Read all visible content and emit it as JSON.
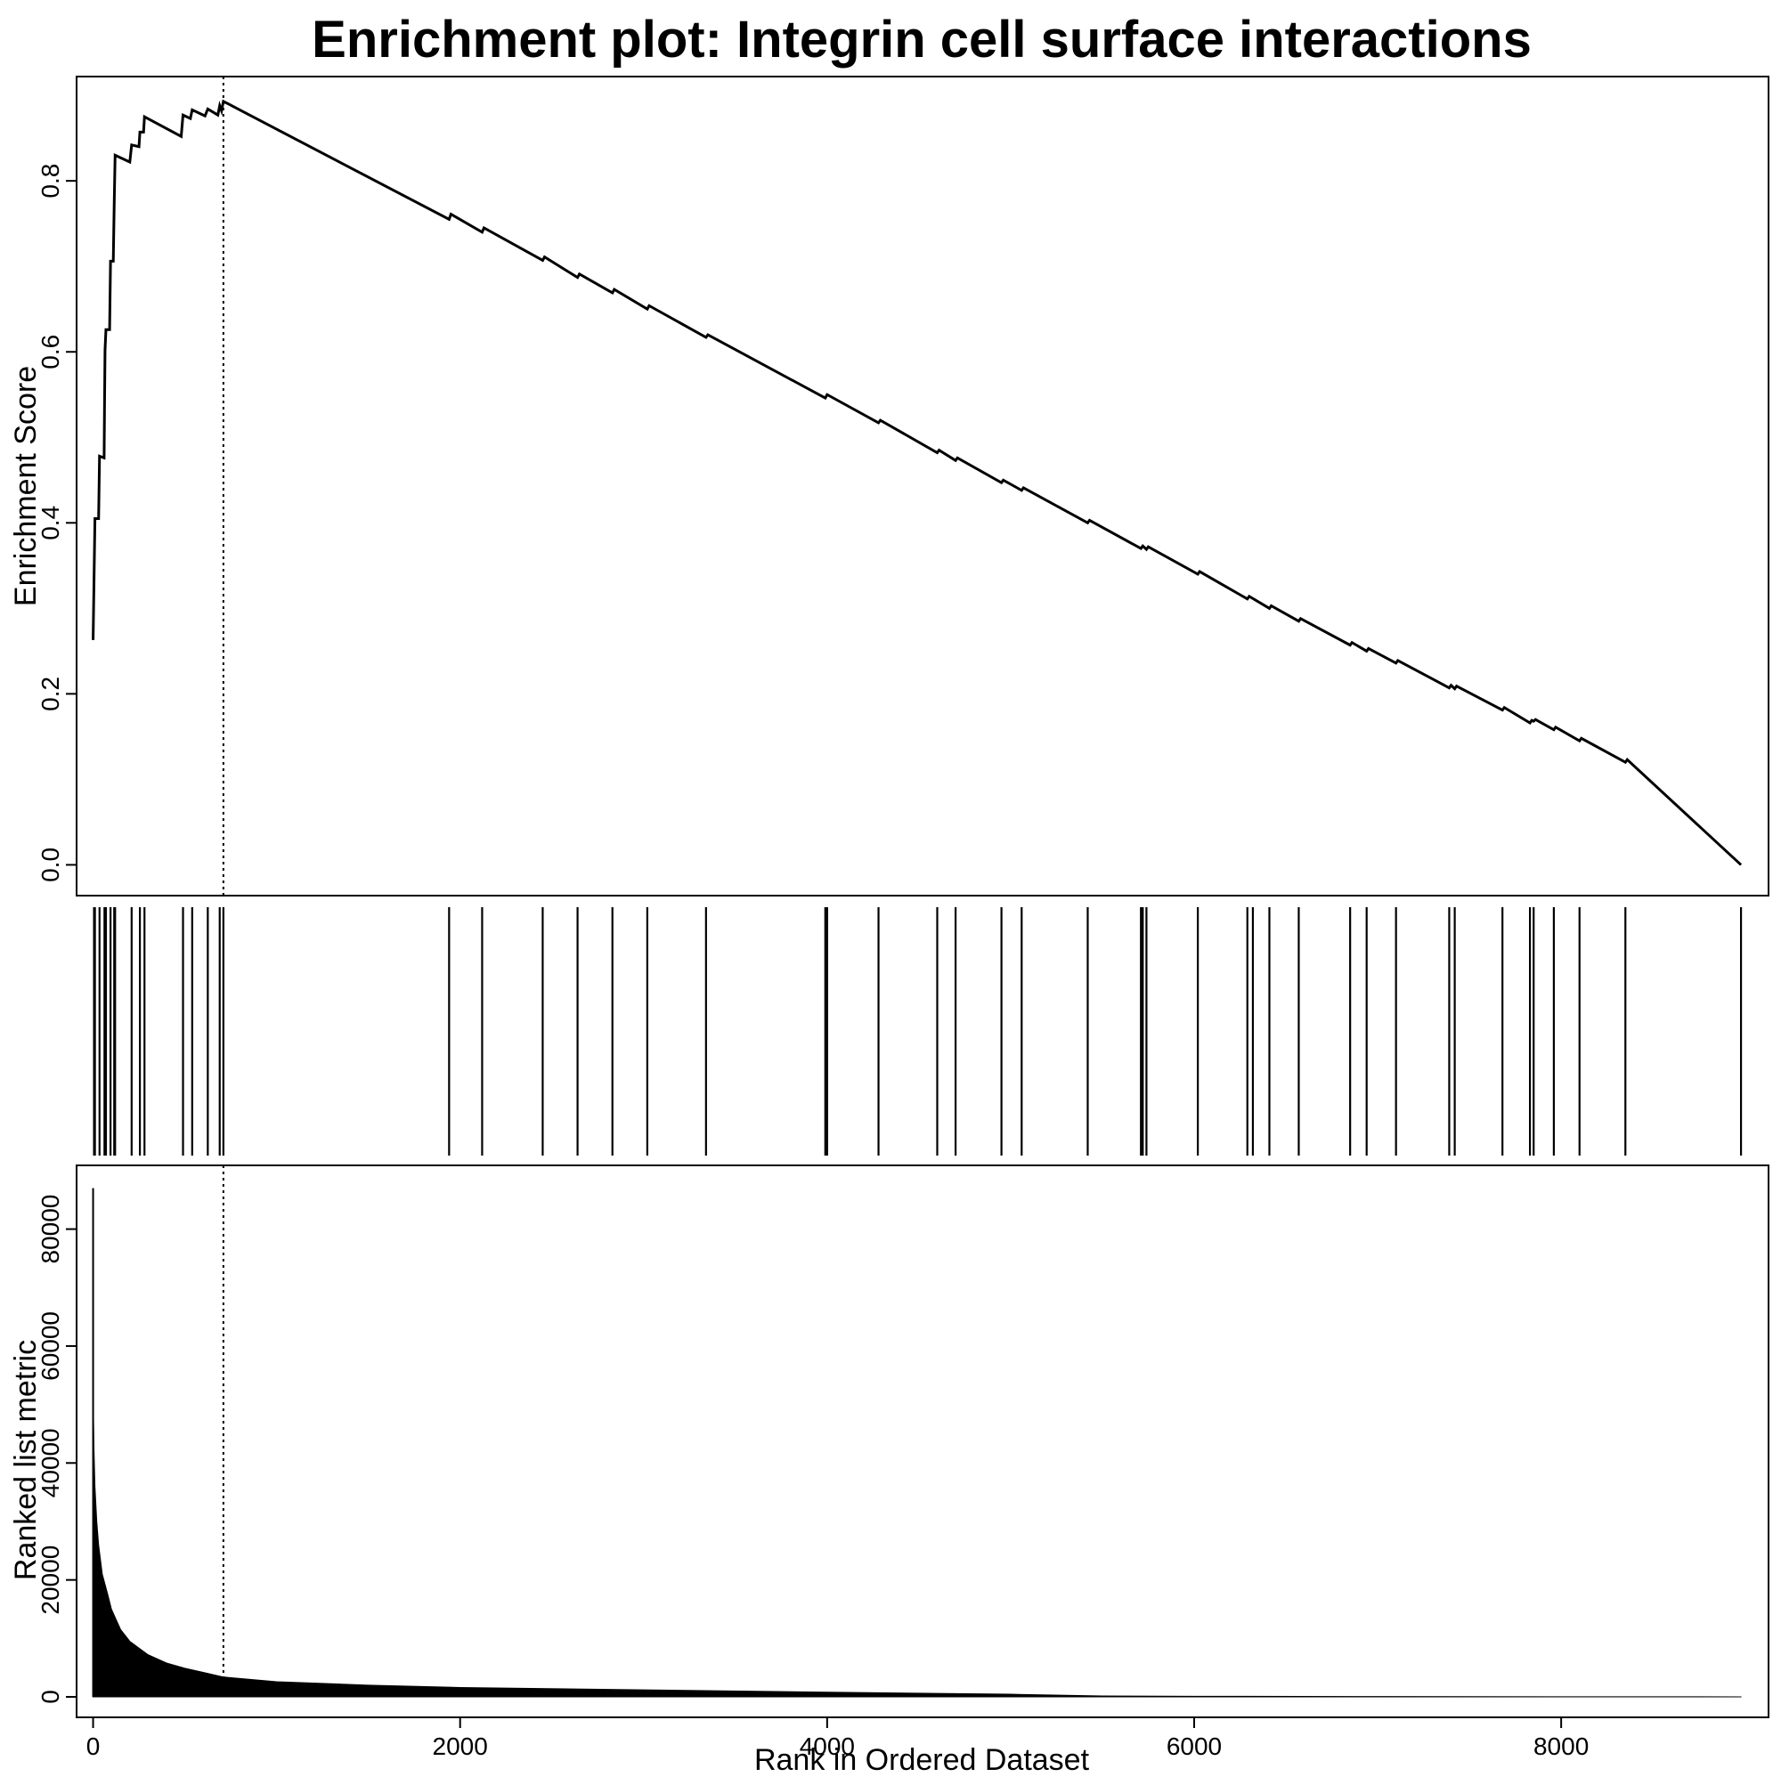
{
  "title": "Enrichment plot: Integrin cell surface interactions",
  "chart_data": [
    {
      "panel": "running-enrichment-score",
      "type": "line",
      "ylabel": "Enrichment Score",
      "xlim": [
        -90,
        9130
      ],
      "ylim": [
        -0.036,
        0.922
      ],
      "yticks": [
        0.0,
        0.2,
        0.4,
        0.6,
        0.8
      ],
      "ytick_labels": [
        "0.0",
        "0.2",
        "0.4",
        "0.6",
        "0.8"
      ],
      "peak_rank": 710,
      "points": [
        [
          0,
          0.263
        ],
        [
          5,
          0.333
        ],
        [
          10,
          0.405
        ],
        [
          30,
          0.405
        ],
        [
          35,
          0.478
        ],
        [
          60,
          0.476
        ],
        [
          62,
          0.53
        ],
        [
          65,
          0.602
        ],
        [
          70,
          0.626
        ],
        [
          90,
          0.626
        ],
        [
          95,
          0.706
        ],
        [
          110,
          0.706
        ],
        [
          115,
          0.773
        ],
        [
          120,
          0.83
        ],
        [
          200,
          0.822
        ],
        [
          210,
          0.842
        ],
        [
          250,
          0.84
        ],
        [
          255,
          0.857
        ],
        [
          275,
          0.857
        ],
        [
          280,
          0.875
        ],
        [
          480,
          0.852
        ],
        [
          490,
          0.877
        ],
        [
          530,
          0.873
        ],
        [
          540,
          0.883
        ],
        [
          610,
          0.876
        ],
        [
          625,
          0.884
        ],
        [
          680,
          0.877
        ],
        [
          690,
          0.888
        ],
        [
          700,
          0.882
        ],
        [
          710,
          0.893
        ],
        [
          1940,
          0.755
        ],
        [
          1950,
          0.761
        ],
        [
          2120,
          0.74
        ],
        [
          2130,
          0.745
        ],
        [
          2450,
          0.707
        ],
        [
          2460,
          0.711
        ],
        [
          2640,
          0.687
        ],
        [
          2650,
          0.691
        ],
        [
          2830,
          0.669
        ],
        [
          2840,
          0.673
        ],
        [
          3020,
          0.65
        ],
        [
          3030,
          0.654
        ],
        [
          3340,
          0.617
        ],
        [
          3350,
          0.62
        ],
        [
          3990,
          0.546
        ],
        [
          4000,
          0.55
        ],
        [
          4280,
          0.517
        ],
        [
          4290,
          0.52
        ],
        [
          4600,
          0.482
        ],
        [
          4610,
          0.485
        ],
        [
          4700,
          0.473
        ],
        [
          4710,
          0.476
        ],
        [
          4950,
          0.447
        ],
        [
          4960,
          0.45
        ],
        [
          5060,
          0.438
        ],
        [
          5070,
          0.441
        ],
        [
          5420,
          0.4
        ],
        [
          5430,
          0.403
        ],
        [
          5710,
          0.37
        ],
        [
          5720,
          0.373
        ],
        [
          5740,
          0.369
        ],
        [
          5750,
          0.372
        ],
        [
          6020,
          0.34
        ],
        [
          6030,
          0.343
        ],
        [
          6290,
          0.311
        ],
        [
          6300,
          0.314
        ],
        [
          6410,
          0.3
        ],
        [
          6420,
          0.303
        ],
        [
          6570,
          0.285
        ],
        [
          6580,
          0.288
        ],
        [
          6850,
          0.257
        ],
        [
          6860,
          0.26
        ],
        [
          6940,
          0.25
        ],
        [
          6950,
          0.253
        ],
        [
          7100,
          0.236
        ],
        [
          7110,
          0.239
        ],
        [
          7390,
          0.207
        ],
        [
          7400,
          0.21
        ],
        [
          7420,
          0.206
        ],
        [
          7430,
          0.209
        ],
        [
          7680,
          0.181
        ],
        [
          7690,
          0.184
        ],
        [
          7830,
          0.166
        ],
        [
          7840,
          0.169
        ],
        [
          7850,
          0.168
        ],
        [
          7860,
          0.17
        ],
        [
          7960,
          0.158
        ],
        [
          7970,
          0.161
        ],
        [
          8100,
          0.145
        ],
        [
          8110,
          0.148
        ],
        [
          8350,
          0.12
        ],
        [
          8360,
          0.123
        ],
        [
          8980,
          0.0
        ]
      ]
    },
    {
      "panel": "gene-set-hits",
      "type": "barcode",
      "positions": [
        5,
        10,
        35,
        62,
        65,
        70,
        95,
        115,
        120,
        210,
        255,
        280,
        490,
        540,
        625,
        690,
        710,
        1940,
        2120,
        2450,
        2640,
        2830,
        3020,
        3340,
        3990,
        4000,
        4280,
        4600,
        4700,
        4950,
        5060,
        5420,
        5710,
        5720,
        5740,
        6020,
        6290,
        6320,
        6410,
        6570,
        6850,
        6940,
        7100,
        7390,
        7420,
        7680,
        7830,
        7850,
        7960,
        8100,
        8350,
        8980
      ]
    },
    {
      "panel": "ranked-list-metric",
      "type": "area",
      "xlabel": "Rank in Ordered Dataset",
      "ylabel": "Ranked list metric",
      "xlim": [
        -90,
        9130
      ],
      "ylim": [
        -3500,
        90900
      ],
      "xticks": [
        0,
        2000,
        4000,
        6000,
        8000
      ],
      "xtick_labels": [
        "0",
        "2000",
        "4000",
        "6000",
        "8000"
      ],
      "yticks": [
        0,
        20000,
        40000,
        60000,
        80000
      ],
      "ytick_labels": [
        "0",
        "20000",
        "40000",
        "60000",
        "80000"
      ],
      "peak_rank": 710,
      "points": [
        [
          0,
          87000
        ],
        [
          2,
          48000
        ],
        [
          5,
          42000
        ],
        [
          10,
          36000
        ],
        [
          20,
          30000
        ],
        [
          30,
          26000
        ],
        [
          50,
          21000
        ],
        [
          80,
          17500
        ],
        [
          100,
          15000
        ],
        [
          150,
          11500
        ],
        [
          200,
          9500
        ],
        [
          300,
          7200
        ],
        [
          400,
          5800
        ],
        [
          500,
          4900
        ],
        [
          600,
          4200
        ],
        [
          710,
          3400
        ],
        [
          1000,
          2600
        ],
        [
          1500,
          2000
        ],
        [
          2000,
          1600
        ],
        [
          3000,
          1200
        ],
        [
          4000,
          800
        ],
        [
          5000,
          450
        ],
        [
          5500,
          150
        ],
        [
          6000,
          100
        ],
        [
          7000,
          60
        ],
        [
          8000,
          30
        ],
        [
          8980,
          10
        ]
      ]
    }
  ]
}
